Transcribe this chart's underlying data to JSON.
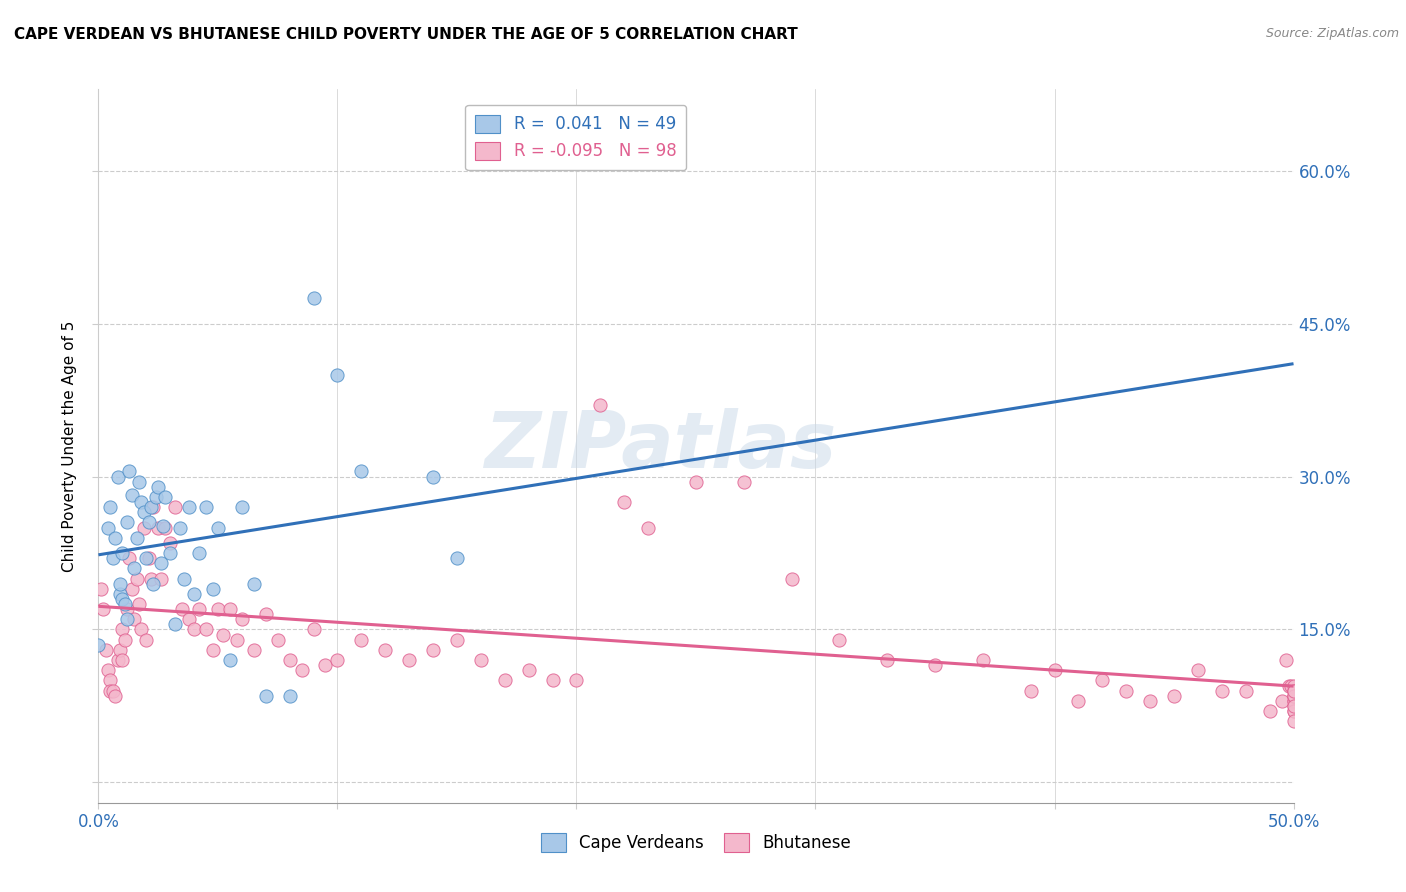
{
  "title": "CAPE VERDEAN VS BHUTANESE CHILD POVERTY UNDER THE AGE OF 5 CORRELATION CHART",
  "source": "Source: ZipAtlas.com",
  "ylabel": "Child Poverty Under the Age of 5",
  "xlim": [
    0.0,
    0.5
  ],
  "ylim": [
    -0.02,
    0.68
  ],
  "xticks": [
    0.0,
    0.1,
    0.2,
    0.3,
    0.4,
    0.5
  ],
  "xtick_labels_show": [
    "0.0%",
    "",
    "",
    "",
    "",
    "50.0%"
  ],
  "ytick_labels_right": [
    "",
    "15.0%",
    "30.0%",
    "45.0%",
    "60.0%"
  ],
  "yticks_right": [
    0.0,
    0.15,
    0.3,
    0.45,
    0.6
  ],
  "cv_color": "#a8c8e8",
  "bh_color": "#f4b8cc",
  "cv_edge_color": "#5090c8",
  "bh_edge_color": "#e06090",
  "cv_line_color": "#3070b8",
  "bh_line_color": "#e06090",
  "watermark": "ZIPatlas",
  "cape_verdeans_x": [
    0.0,
    0.004,
    0.005,
    0.006,
    0.007,
    0.008,
    0.009,
    0.009,
    0.01,
    0.01,
    0.011,
    0.012,
    0.012,
    0.013,
    0.014,
    0.015,
    0.016,
    0.017,
    0.018,
    0.019,
    0.02,
    0.021,
    0.022,
    0.023,
    0.024,
    0.025,
    0.026,
    0.027,
    0.028,
    0.03,
    0.032,
    0.034,
    0.036,
    0.038,
    0.04,
    0.042,
    0.045,
    0.048,
    0.05,
    0.055,
    0.06,
    0.065,
    0.07,
    0.08,
    0.09,
    0.1,
    0.11,
    0.14,
    0.15
  ],
  "cape_verdeans_y": [
    0.135,
    0.25,
    0.27,
    0.22,
    0.24,
    0.3,
    0.185,
    0.195,
    0.18,
    0.225,
    0.175,
    0.16,
    0.255,
    0.305,
    0.282,
    0.21,
    0.24,
    0.295,
    0.275,
    0.265,
    0.22,
    0.255,
    0.27,
    0.195,
    0.28,
    0.29,
    0.215,
    0.252,
    0.28,
    0.225,
    0.155,
    0.25,
    0.2,
    0.27,
    0.185,
    0.225,
    0.27,
    0.19,
    0.25,
    0.12,
    0.27,
    0.195,
    0.085,
    0.085,
    0.475,
    0.4,
    0.305,
    0.3,
    0.22
  ],
  "bhutanese_x": [
    0.001,
    0.002,
    0.003,
    0.004,
    0.005,
    0.005,
    0.006,
    0.007,
    0.008,
    0.009,
    0.01,
    0.01,
    0.011,
    0.012,
    0.013,
    0.014,
    0.015,
    0.016,
    0.017,
    0.018,
    0.019,
    0.02,
    0.021,
    0.022,
    0.023,
    0.025,
    0.026,
    0.028,
    0.03,
    0.032,
    0.035,
    0.038,
    0.04,
    0.042,
    0.045,
    0.048,
    0.05,
    0.052,
    0.055,
    0.058,
    0.06,
    0.065,
    0.07,
    0.075,
    0.08,
    0.085,
    0.09,
    0.095,
    0.1,
    0.11,
    0.12,
    0.13,
    0.14,
    0.15,
    0.16,
    0.17,
    0.18,
    0.19,
    0.2,
    0.21,
    0.22,
    0.23,
    0.25,
    0.27,
    0.29,
    0.31,
    0.33,
    0.35,
    0.37,
    0.39,
    0.4,
    0.41,
    0.42,
    0.43,
    0.44,
    0.45,
    0.46,
    0.47,
    0.48,
    0.49,
    0.495,
    0.497,
    0.498,
    0.499,
    0.5,
    0.5,
    0.5,
    0.5,
    0.5,
    0.5,
    0.5,
    0.5,
    0.5,
    0.5,
    0.5,
    0.5,
    0.5,
    0.5
  ],
  "bhutanese_y": [
    0.19,
    0.17,
    0.13,
    0.11,
    0.1,
    0.09,
    0.09,
    0.085,
    0.12,
    0.13,
    0.15,
    0.12,
    0.14,
    0.17,
    0.22,
    0.19,
    0.16,
    0.2,
    0.175,
    0.15,
    0.25,
    0.14,
    0.22,
    0.2,
    0.27,
    0.25,
    0.2,
    0.25,
    0.235,
    0.27,
    0.17,
    0.16,
    0.15,
    0.17,
    0.15,
    0.13,
    0.17,
    0.145,
    0.17,
    0.14,
    0.16,
    0.13,
    0.165,
    0.14,
    0.12,
    0.11,
    0.15,
    0.115,
    0.12,
    0.14,
    0.13,
    0.12,
    0.13,
    0.14,
    0.12,
    0.1,
    0.11,
    0.1,
    0.1,
    0.37,
    0.275,
    0.25,
    0.295,
    0.295,
    0.2,
    0.14,
    0.12,
    0.115,
    0.12,
    0.09,
    0.11,
    0.08,
    0.1,
    0.09,
    0.08,
    0.085,
    0.11,
    0.09,
    0.09,
    0.07,
    0.08,
    0.12,
    0.095,
    0.095,
    0.075,
    0.08,
    0.085,
    0.09,
    0.095,
    0.07,
    0.08,
    0.085,
    0.09,
    0.07,
    0.085,
    0.09,
    0.075,
    0.06
  ]
}
